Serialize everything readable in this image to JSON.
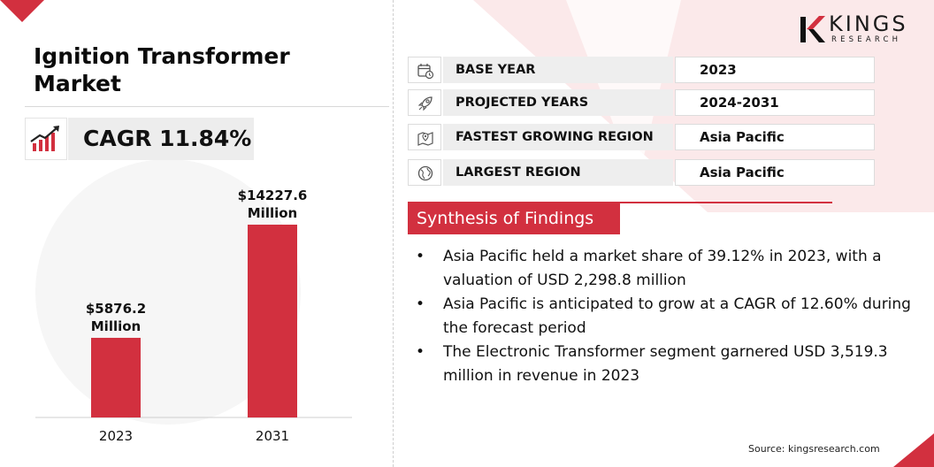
{
  "brand": {
    "name_main": "KINGS",
    "name_sub": "RESEARCH",
    "colors": {
      "accent": "#d2303f",
      "dark": "#111111",
      "panel": "#eeeeee"
    }
  },
  "title": "Ignition Transformer Market",
  "cagr": {
    "text": "CAGR 11.84%",
    "icon": "growth-chart-icon"
  },
  "info_rows": [
    {
      "icon": "calendar-icon",
      "label": "BASE YEAR",
      "value": "2023"
    },
    {
      "icon": "rocket-icon",
      "label": "PROJECTED YEARS",
      "value": "2024-2031"
    },
    {
      "icon": "region-map-icon",
      "label": "FASTEST GROWING REGION",
      "value": "Asia Pacific"
    },
    {
      "icon": "globe-icon",
      "label": "LARGEST REGION",
      "value": "Asia Pacific"
    }
  ],
  "synthesis": {
    "title": "Synthesis of Findings",
    "bullet": "•",
    "items": [
      "Asia Pacific held a market share of 39.12% in 2023, with a valuation of USD 2,298.8 million",
      "Asia Pacific is anticipated to grow at a CAGR of 12.60% during the forecast period",
      "The Electronic Transformer segment garnered USD 3,519.3 million in revenue in 2023"
    ]
  },
  "source": "Source: kingsresearch.com",
  "chart_data": {
    "type": "bar",
    "categories": [
      "2023",
      "2031"
    ],
    "values": [
      5876.2,
      14227.6
    ],
    "data_labels": [
      [
        "$5876.2",
        "Million"
      ],
      [
        "$14227.6",
        "Million"
      ]
    ],
    "title": "",
    "xlabel": "",
    "ylabel": "",
    "ylim": [
      0,
      14227.6
    ],
    "grid": false,
    "bar_color": "#d2303f"
  }
}
